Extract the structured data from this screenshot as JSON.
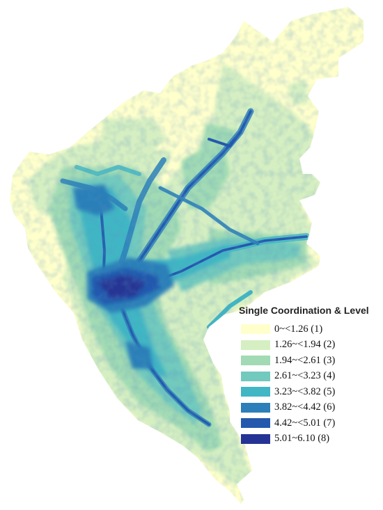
{
  "legend": {
    "title": "Single Coordination & Level",
    "items": [
      {
        "label": "0~<1.26 (1)",
        "color": "#ffffcc"
      },
      {
        "label": "1.26~<1.94 (2)",
        "color": "#d6efc2"
      },
      {
        "label": "1.94~<2.61 (3)",
        "color": "#a1dab4"
      },
      {
        "label": "2.61~<3.23 (4)",
        "color": "#72c9bd"
      },
      {
        "label": "3.23~<3.82 (5)",
        "color": "#41b6c4"
      },
      {
        "label": "3.82~<4.42 (6)",
        "color": "#2c7fb8"
      },
      {
        "label": "4.42~<5.01 (7)",
        "color": "#2458ad"
      },
      {
        "label": "5.01~6.10 (8)",
        "color": "#253494"
      }
    ]
  }
}
